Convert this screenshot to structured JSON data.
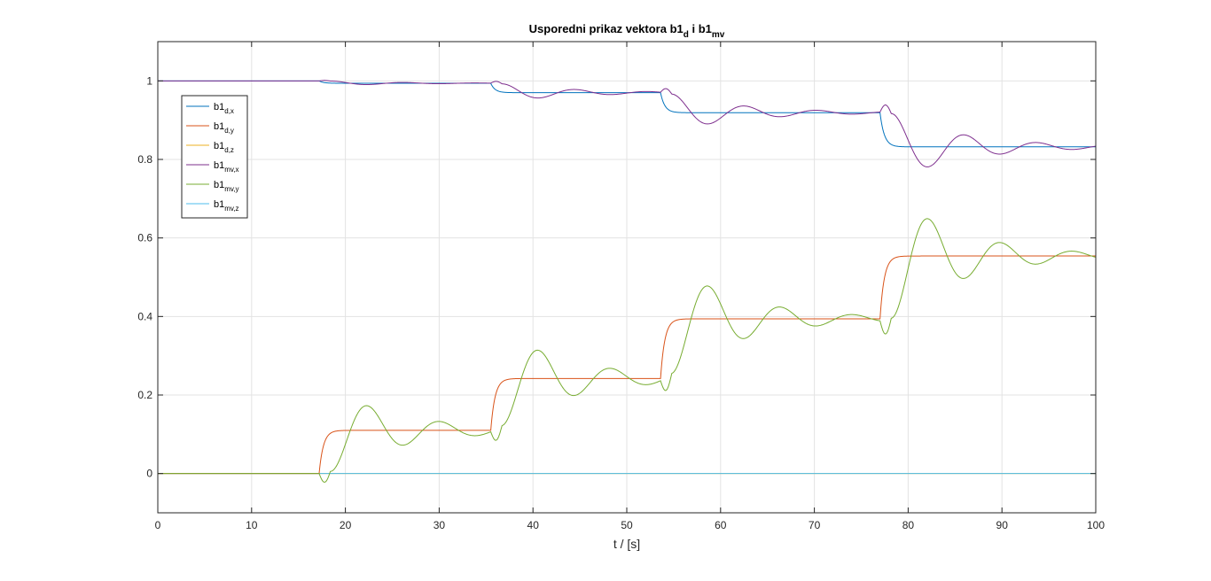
{
  "chart_data": {
    "type": "line",
    "title": {
      "main": "Usporedni prikaz vektora b1",
      "sub1": "d",
      "mid": " i b1",
      "sub2": "mv"
    },
    "xlabel": "t / [s]",
    "ylabel": "",
    "xlim": [
      0,
      100
    ],
    "ylim": [
      -0.1,
      1.1
    ],
    "xticks": [
      0,
      10,
      20,
      30,
      40,
      50,
      60,
      70,
      80,
      90,
      100
    ],
    "yticks": [
      0,
      0.2,
      0.4,
      0.6,
      0.8,
      1
    ],
    "grid": true,
    "legend_position": "top-left",
    "series": [
      {
        "name": "b1",
        "sub": "d,x",
        "color": "#0072BD",
        "kind": "step_x"
      },
      {
        "name": "b1",
        "sub": "d,y",
        "color": "#D95319",
        "kind": "step_y"
      },
      {
        "name": "b1",
        "sub": "d,z",
        "color": "#EDB120",
        "kind": "zero"
      },
      {
        "name": "b1",
        "sub": "mv,x",
        "color": "#7E2F8E",
        "kind": "osc_x"
      },
      {
        "name": "b1",
        "sub": "mv,y",
        "color": "#77AC30",
        "kind": "osc_y"
      },
      {
        "name": "b1",
        "sub": "mv,z",
        "color": "#4DBEEE",
        "kind": "zero"
      }
    ],
    "steps": [
      {
        "t": 17.2,
        "x": 0.994,
        "y": 0.11
      },
      {
        "t": 35.5,
        "x": 0.97,
        "y": 0.242
      },
      {
        "t": 53.6,
        "x": 0.919,
        "y": 0.394
      },
      {
        "t": 77.0,
        "x": 0.832,
        "y": 0.554
      }
    ],
    "initial": {
      "x": 1.0,
      "y": 0.0
    }
  }
}
